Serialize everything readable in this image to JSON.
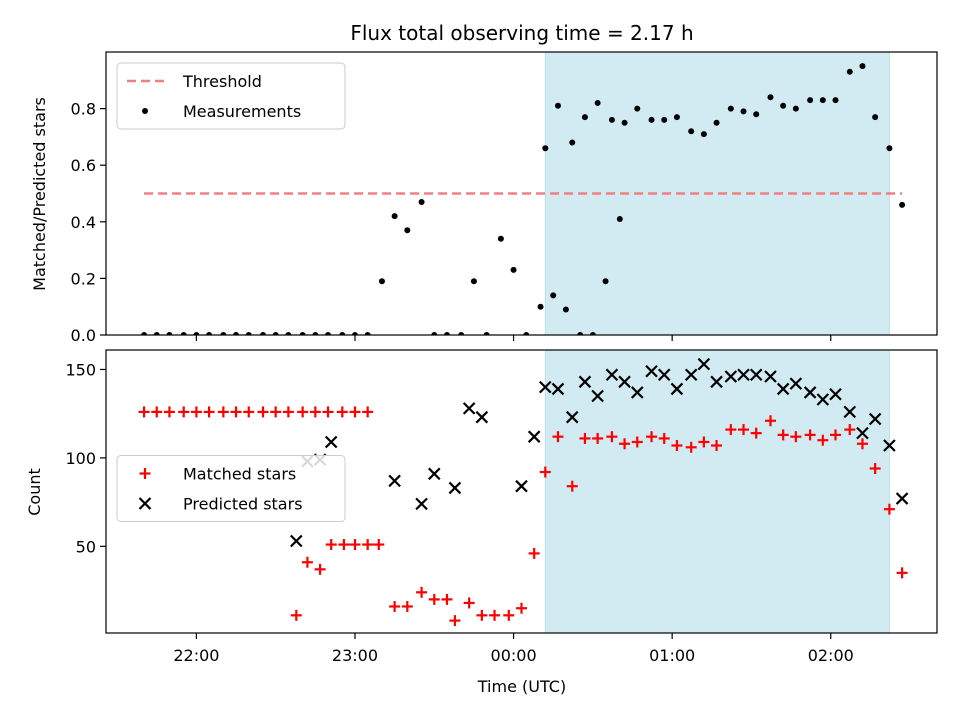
{
  "chart_data": [
    {
      "type": "scatter",
      "title": "Flux total observing time = 2.17 h",
      "xlabel": "",
      "ylabel": "Matched/Predicted stars",
      "ylim": [
        0,
        1.0
      ],
      "yticks": [
        0.0,
        0.2,
        0.4,
        0.6,
        0.8
      ],
      "ytick_labels": [
        "0.0",
        "0.2",
        "0.4",
        "0.6",
        "0.8"
      ],
      "xlim": [
        -2.57,
        2.67
      ],
      "xticks": [
        -2,
        -1,
        0,
        1,
        2
      ],
      "xtick_labels": [
        "",
        "",
        "",
        "",
        ""
      ],
      "grid": false,
      "legend": "top-left",
      "shaded_region": {
        "x_start": 0.2,
        "x_end": 2.37,
        "color": "#add8e6"
      },
      "series": [
        {
          "name": "Threshold",
          "style": "dashed-line",
          "color": "#f08080",
          "points": [
            [
              -2.33,
              0.5
            ],
            [
              2.45,
              0.5
            ]
          ]
        },
        {
          "name": "Measurements",
          "style": "dot",
          "color": "#000000",
          "points": [
            [
              -2.33,
              0
            ],
            [
              -2.25,
              0
            ],
            [
              -2.17,
              0
            ],
            [
              -2.08,
              0
            ],
            [
              -2.0,
              0
            ],
            [
              -1.92,
              0
            ],
            [
              -1.83,
              0
            ],
            [
              -1.75,
              0
            ],
            [
              -1.67,
              0
            ],
            [
              -1.58,
              0
            ],
            [
              -1.5,
              0
            ],
            [
              -1.42,
              0
            ],
            [
              -1.33,
              0
            ],
            [
              -1.25,
              0
            ],
            [
              -1.17,
              0
            ],
            [
              -1.08,
              0
            ],
            [
              -1.0,
              0
            ],
            [
              -0.92,
              0
            ],
            [
              -0.83,
              0.19
            ],
            [
              -0.75,
              0.42
            ],
            [
              -0.67,
              0.37
            ],
            [
              -0.58,
              0.47
            ],
            [
              -0.5,
              0
            ],
            [
              -0.42,
              0
            ],
            [
              -0.33,
              0
            ],
            [
              -0.25,
              0.19
            ],
            [
              -0.17,
              0
            ],
            [
              -0.08,
              0.34
            ],
            [
              0.0,
              0.23
            ],
            [
              0.08,
              0
            ],
            [
              0.17,
              0.1
            ],
            [
              0.25,
              0.14
            ],
            [
              0.33,
              0.09
            ],
            [
              0.42,
              0
            ],
            [
              0.5,
              0
            ],
            [
              0.58,
              0.19
            ],
            [
              0.67,
              0.41
            ],
            [
              0.2,
              0.66
            ],
            [
              0.28,
              0.81
            ],
            [
              0.37,
              0.68
            ],
            [
              0.45,
              0.77
            ],
            [
              0.53,
              0.82
            ],
            [
              0.62,
              0.76
            ],
            [
              0.7,
              0.75
            ],
            [
              0.78,
              0.8
            ],
            [
              0.87,
              0.76
            ],
            [
              0.95,
              0.76
            ],
            [
              1.03,
              0.77
            ],
            [
              1.12,
              0.72
            ],
            [
              1.2,
              0.71
            ],
            [
              1.28,
              0.75
            ],
            [
              1.37,
              0.8
            ],
            [
              1.45,
              0.79
            ],
            [
              1.53,
              0.78
            ],
            [
              1.62,
              0.84
            ],
            [
              1.7,
              0.81
            ],
            [
              1.78,
              0.8
            ],
            [
              1.87,
              0.83
            ],
            [
              1.95,
              0.83
            ],
            [
              2.03,
              0.83
            ],
            [
              2.12,
              0.93
            ],
            [
              2.2,
              0.95
            ],
            [
              2.28,
              0.77
            ],
            [
              2.37,
              0.66
            ],
            [
              2.45,
              0.46
            ]
          ]
        }
      ]
    },
    {
      "type": "scatter",
      "title": "",
      "xlabel": "Time (UTC)",
      "ylabel": "Count",
      "ylim": [
        1,
        161
      ],
      "yticks": [
        50,
        100,
        150
      ],
      "ytick_labels": [
        "50",
        "100",
        "150"
      ],
      "xlim": [
        -2.57,
        2.67
      ],
      "xticks": [
        -2,
        -1,
        0,
        1,
        2
      ],
      "xtick_labels": [
        "22:00",
        "23:00",
        "00:00",
        "01:00",
        "02:00"
      ],
      "grid": false,
      "legend": "center-left",
      "shaded_region": {
        "x_start": 0.2,
        "x_end": 2.37,
        "color": "#add8e6"
      },
      "series": [
        {
          "name": "Matched stars",
          "style": "plus",
          "color": "#ff0000",
          "points": [
            [
              -2.33,
              126
            ],
            [
              -2.25,
              126
            ],
            [
              -2.17,
              126
            ],
            [
              -2.08,
              126
            ],
            [
              -2.0,
              126
            ],
            [
              -1.92,
              126
            ],
            [
              -1.83,
              126
            ],
            [
              -1.75,
              126
            ],
            [
              -1.67,
              126
            ],
            [
              -1.58,
              126
            ],
            [
              -1.5,
              126
            ],
            [
              -1.42,
              126
            ],
            [
              -1.33,
              126
            ],
            [
              -1.25,
              126
            ],
            [
              -1.17,
              126
            ],
            [
              -1.08,
              126
            ],
            [
              -1.0,
              126
            ],
            [
              -0.92,
              126
            ],
            [
              -1.37,
              11
            ],
            [
              -1.3,
              41
            ],
            [
              -1.22,
              37
            ],
            [
              -1.15,
              51
            ],
            [
              -1.07,
              51
            ],
            [
              -1.0,
              51
            ],
            [
              -0.92,
              51
            ],
            [
              -0.85,
              51
            ],
            [
              -0.75,
              16
            ],
            [
              -0.67,
              16
            ],
            [
              -0.58,
              24
            ],
            [
              -0.5,
              20
            ],
            [
              -0.42,
              20
            ],
            [
              -0.37,
              8
            ],
            [
              -0.28,
              18
            ],
            [
              -0.2,
              11
            ],
            [
              -0.12,
              11
            ],
            [
              -0.03,
              11
            ],
            [
              0.05,
              15
            ],
            [
              0.13,
              46
            ],
            [
              0.2,
              92
            ],
            [
              0.28,
              112
            ],
            [
              0.37,
              84
            ],
            [
              0.45,
              111
            ],
            [
              0.53,
              111
            ],
            [
              0.62,
              112
            ],
            [
              0.7,
              108
            ],
            [
              0.78,
              109
            ],
            [
              0.87,
              112
            ],
            [
              0.95,
              111
            ],
            [
              1.03,
              107
            ],
            [
              1.12,
              106
            ],
            [
              1.2,
              109
            ],
            [
              1.28,
              107
            ],
            [
              1.37,
              116
            ],
            [
              1.45,
              116
            ],
            [
              1.53,
              114
            ],
            [
              1.62,
              121
            ],
            [
              1.7,
              113
            ],
            [
              1.78,
              112
            ],
            [
              1.87,
              113
            ],
            [
              1.95,
              110
            ],
            [
              2.03,
              113
            ],
            [
              2.12,
              116
            ],
            [
              2.2,
              108
            ],
            [
              2.28,
              94
            ],
            [
              2.37,
              71
            ],
            [
              2.45,
              35
            ]
          ]
        },
        {
          "name": "Predicted stars",
          "style": "x",
          "color": "#000000",
          "points": [
            [
              -1.37,
              53
            ],
            [
              -1.3,
              98
            ],
            [
              -1.22,
              99
            ],
            [
              -1.15,
              109
            ],
            [
              -0.75,
              87
            ],
            [
              -0.58,
              74
            ],
            [
              -0.5,
              91
            ],
            [
              -0.37,
              83
            ],
            [
              -0.28,
              128
            ],
            [
              -0.2,
              123
            ],
            [
              0.05,
              84
            ],
            [
              0.13,
              112
            ],
            [
              0.2,
              140
            ],
            [
              0.28,
              139
            ],
            [
              0.37,
              123
            ],
            [
              0.45,
              143
            ],
            [
              0.53,
              135
            ],
            [
              0.62,
              147
            ],
            [
              0.7,
              143
            ],
            [
              0.78,
              137
            ],
            [
              0.87,
              149
            ],
            [
              0.95,
              147
            ],
            [
              1.03,
              139
            ],
            [
              1.12,
              147
            ],
            [
              1.2,
              153
            ],
            [
              1.28,
              143
            ],
            [
              1.37,
              146
            ],
            [
              1.45,
              147
            ],
            [
              1.53,
              147
            ],
            [
              1.62,
              146
            ],
            [
              1.7,
              139
            ],
            [
              1.78,
              142
            ],
            [
              1.87,
              137
            ],
            [
              1.95,
              133
            ],
            [
              2.03,
              136
            ],
            [
              2.12,
              126
            ],
            [
              2.2,
              114
            ],
            [
              2.28,
              122
            ],
            [
              2.37,
              107
            ],
            [
              2.45,
              77
            ]
          ]
        }
      ]
    }
  ]
}
